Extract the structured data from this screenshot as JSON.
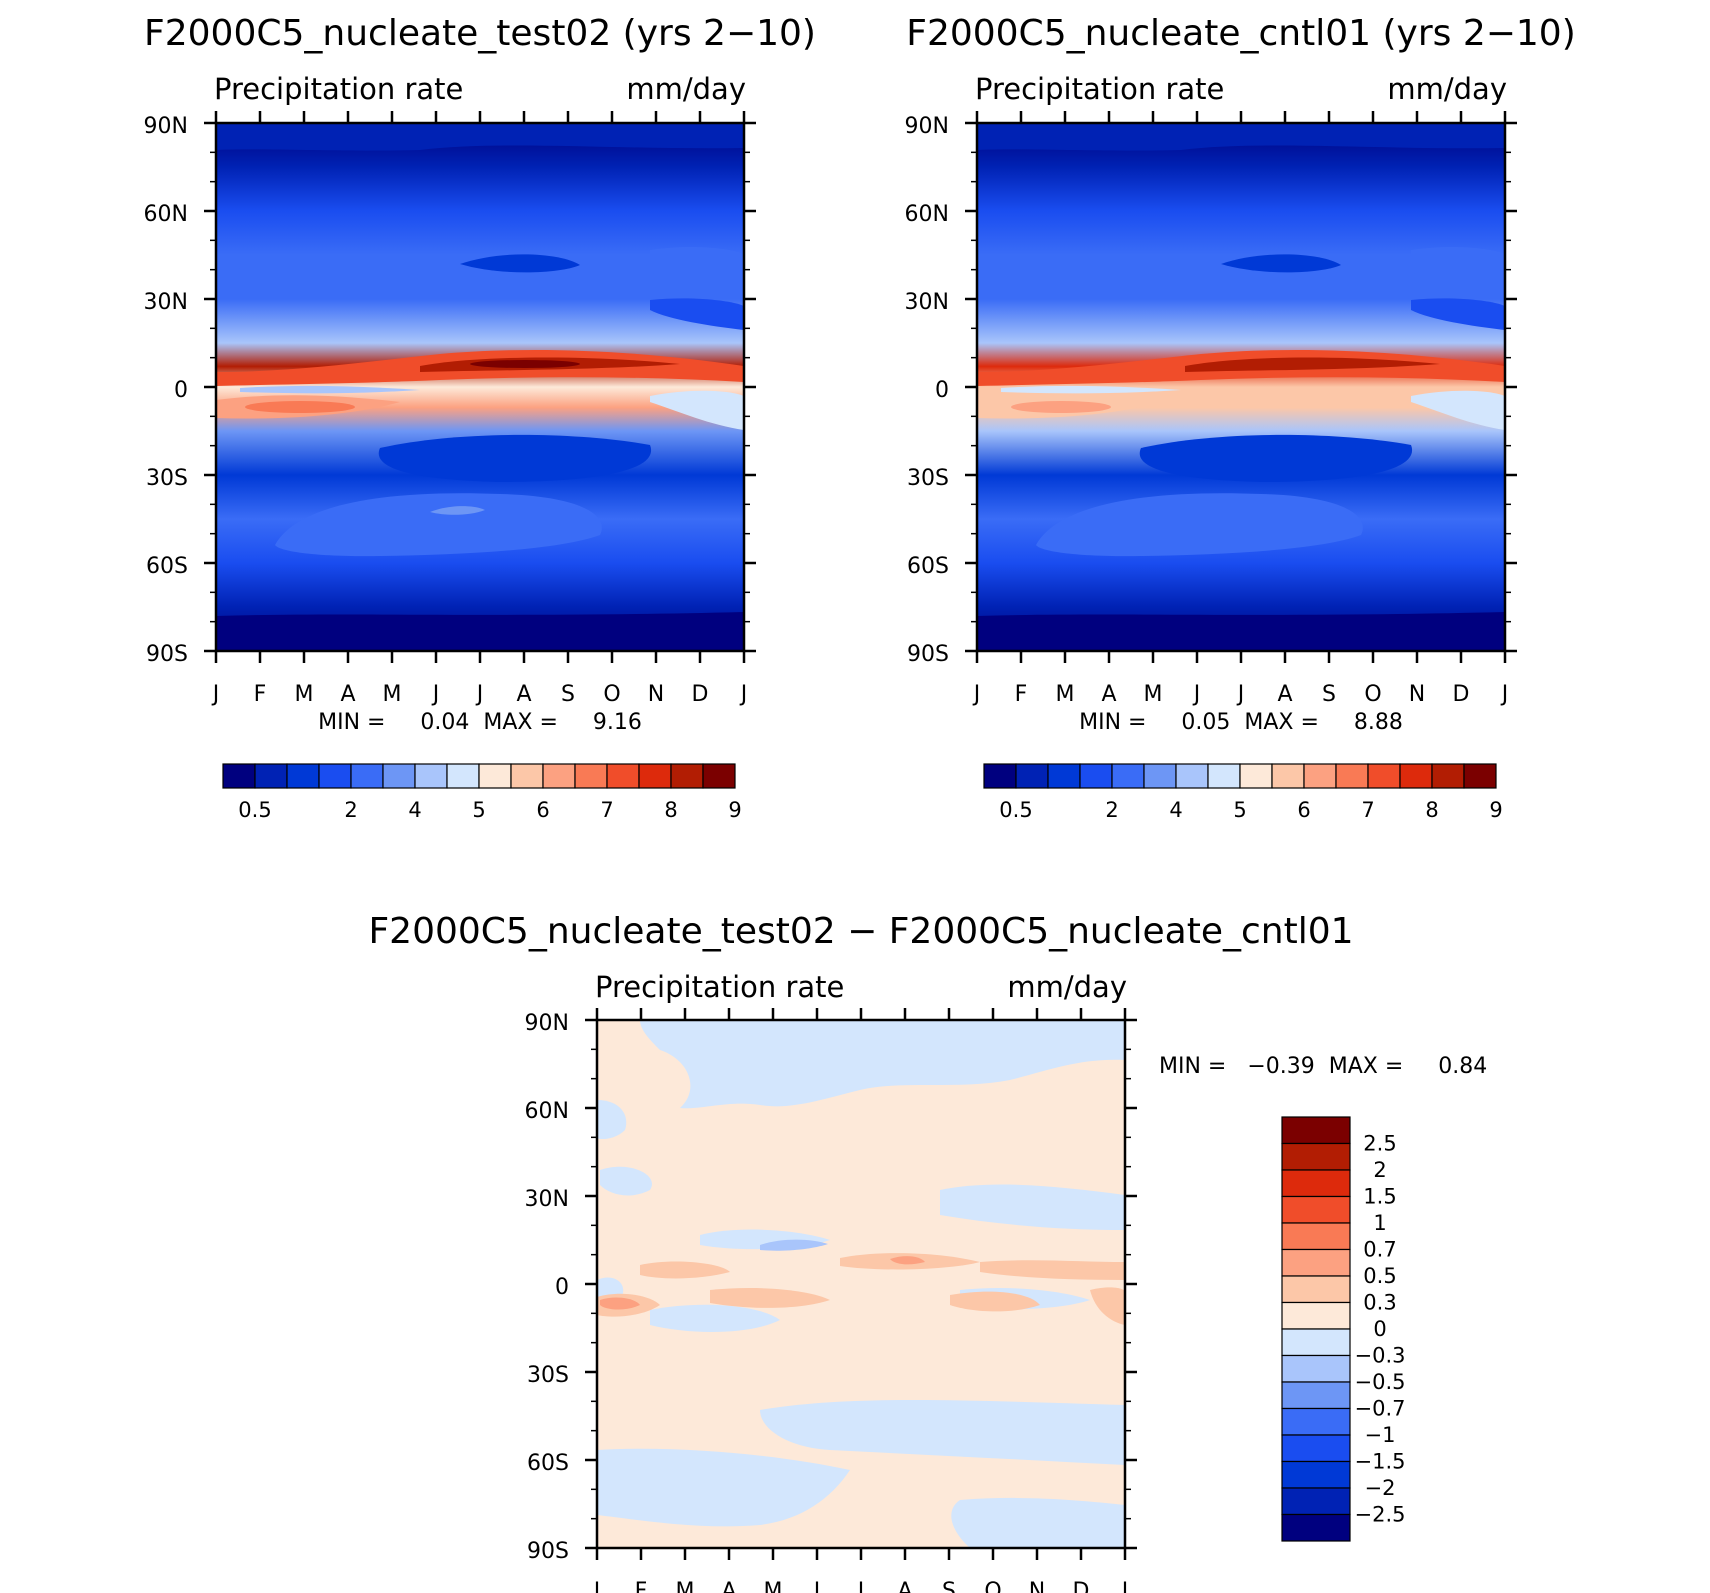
{
  "chart_data": [
    {
      "type": "heatmap",
      "title": "F2000C5_nucleate_test02 (yrs 2−10)",
      "field_label": "Precipitation rate",
      "units": "mm/day",
      "x_ticks": [
        "J",
        "F",
        "M",
        "A",
        "M",
        "J",
        "J",
        "A",
        "S",
        "O",
        "N",
        "D",
        "J"
      ],
      "y_ticks": [
        "90N",
        "60N",
        "30N",
        "0",
        "30S",
        "60S",
        "90S"
      ],
      "y_range": [
        -90,
        90
      ],
      "min_max_text": "MIN =     0.04  MAX =     9.16",
      "colorbar": {
        "orientation": "horizontal",
        "labels": [
          "0.5",
          "2",
          "4",
          "5",
          "6",
          "7",
          "8",
          "9"
        ],
        "colors": [
          "#00007f",
          "#0022b4",
          "#0039d6",
          "#1a4df0",
          "#3a6cf6",
          "#6d96f5",
          "#a9c5fb",
          "#d3e6fd",
          "#fde9d9",
          "#fcc7a8",
          "#fca181",
          "#f97a55",
          "#f04d2a",
          "#dd2a0c",
          "#b21d03",
          "#7b0000"
        ]
      },
      "zonal_profile": [
        {
          "lat": 90,
          "v": 0.5
        },
        {
          "lat": 75,
          "v": 1.0
        },
        {
          "lat": 60,
          "v": 2.0
        },
        {
          "lat": 45,
          "v": 2.6
        },
        {
          "lat": 30,
          "v": 2.4
        },
        {
          "lat": 15,
          "v": 3.6
        },
        {
          "lat": 7,
          "v": 8.5
        },
        {
          "lat": 0,
          "v": 5.2
        },
        {
          "lat": -7,
          "v": 6.0
        },
        {
          "lat": -15,
          "v": 3.5
        },
        {
          "lat": -30,
          "v": 1.6
        },
        {
          "lat": -45,
          "v": 2.8
        },
        {
          "lat": -60,
          "v": 2.0
        },
        {
          "lat": -75,
          "v": 0.8
        },
        {
          "lat": -90,
          "v": 0.05
        }
      ]
    },
    {
      "type": "heatmap",
      "title": "F2000C5_nucleate_cntl01 (yrs 2−10)",
      "field_label": "Precipitation rate",
      "units": "mm/day",
      "x_ticks": [
        "J",
        "F",
        "M",
        "A",
        "M",
        "J",
        "J",
        "A",
        "S",
        "O",
        "N",
        "D",
        "J"
      ],
      "y_ticks": [
        "90N",
        "60N",
        "30N",
        "0",
        "30S",
        "60S",
        "90S"
      ],
      "y_range": [
        -90,
        90
      ],
      "min_max_text": "MIN =     0.05  MAX =     8.88",
      "colorbar": {
        "orientation": "horizontal",
        "labels": [
          "0.5",
          "2",
          "4",
          "5",
          "6",
          "7",
          "8",
          "9"
        ],
        "colors": [
          "#00007f",
          "#0022b4",
          "#0039d6",
          "#1a4df0",
          "#3a6cf6",
          "#6d96f5",
          "#a9c5fb",
          "#d3e6fd",
          "#fde9d9",
          "#fcc7a8",
          "#fca181",
          "#f97a55",
          "#f04d2a",
          "#dd2a0c",
          "#b21d03",
          "#7b0000"
        ]
      },
      "zonal_profile": [
        {
          "lat": 90,
          "v": 0.5
        },
        {
          "lat": 75,
          "v": 1.0
        },
        {
          "lat": 60,
          "v": 2.0
        },
        {
          "lat": 45,
          "v": 2.6
        },
        {
          "lat": 30,
          "v": 2.4
        },
        {
          "lat": 15,
          "v": 3.6
        },
        {
          "lat": 7,
          "v": 8.3
        },
        {
          "lat": 0,
          "v": 5.4
        },
        {
          "lat": -7,
          "v": 5.7
        },
        {
          "lat": -15,
          "v": 3.6
        },
        {
          "lat": -30,
          "v": 1.6
        },
        {
          "lat": -45,
          "v": 2.8
        },
        {
          "lat": -60,
          "v": 2.0
        },
        {
          "lat": -75,
          "v": 0.8
        },
        {
          "lat": -90,
          "v": 0.05
        }
      ]
    },
    {
      "type": "heatmap",
      "title": "F2000C5_nucleate_test02 − F2000C5_nucleate_cntl01",
      "field_label": "Precipitation rate",
      "units": "mm/day",
      "x_ticks": [
        "J",
        "F",
        "M",
        "A",
        "M",
        "J",
        "J",
        "A",
        "S",
        "O",
        "N",
        "D",
        "J"
      ],
      "y_ticks": [
        "90N",
        "60N",
        "30N",
        "0",
        "30S",
        "60S",
        "90S"
      ],
      "y_range": [
        -90,
        90
      ],
      "min_max_text": "MIN =   −0.39  MAX =     0.84",
      "colorbar": {
        "orientation": "vertical",
        "labels": [
          "2.5",
          "2",
          "1.5",
          "1",
          "0.7",
          "0.5",
          "0.3",
          "0",
          "−0.3",
          "−0.5",
          "−0.7",
          "−1",
          "−1.5",
          "−2",
          "−2.5"
        ],
        "colors": [
          "#7b0000",
          "#b21d03",
          "#dd2a0c",
          "#f04d2a",
          "#f97a55",
          "#fca181",
          "#fcc7a8",
          "#fde9d9",
          "#d3e6fd",
          "#a9c5fb",
          "#6d96f5",
          "#3a6cf6",
          "#1a4df0",
          "#0039d6",
          "#0022b4",
          "#00007f"
        ]
      }
    }
  ]
}
